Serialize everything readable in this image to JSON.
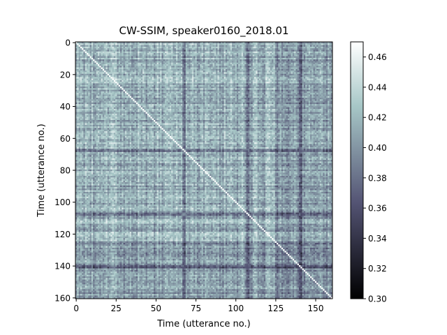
{
  "chart_data": {
    "type": "heatmap",
    "title": "CW-SSIM, speaker0160_2018.01",
    "xlabel": "Time (utterance no.)",
    "ylabel": "Time (utterance no.)",
    "n": 161,
    "xlim": [
      0,
      161
    ],
    "ylim": [
      161,
      0
    ],
    "xticks": [
      0,
      25,
      50,
      75,
      100,
      125,
      150
    ],
    "yticks": [
      0,
      20,
      40,
      60,
      80,
      100,
      120,
      140,
      160
    ],
    "colorbar": {
      "vmin": 0.3,
      "vmax": 0.47,
      "ticks": [
        0.3,
        0.32,
        0.34,
        0.36,
        0.38,
        0.4,
        0.42,
        0.44,
        0.46
      ],
      "tick_labels": [
        "0.30",
        "0.32",
        "0.34",
        "0.36",
        "0.38",
        "0.40",
        "0.42",
        "0.44",
        "0.46"
      ],
      "colormap": "bone"
    },
    "diagonal_value": 1.0,
    "typical_value": 0.415,
    "dark_rows_and_columns": [
      67,
      68,
      107,
      108,
      140,
      141
    ],
    "darker_region_columns": [
      125,
      160
    ],
    "grid": false,
    "legend": "none"
  },
  "colors": {
    "background": "#ffffff",
    "axes": "#000000",
    "cmap_stops": [
      "#000000",
      "#545474",
      "#a7c7c7",
      "#ffffff"
    ]
  }
}
